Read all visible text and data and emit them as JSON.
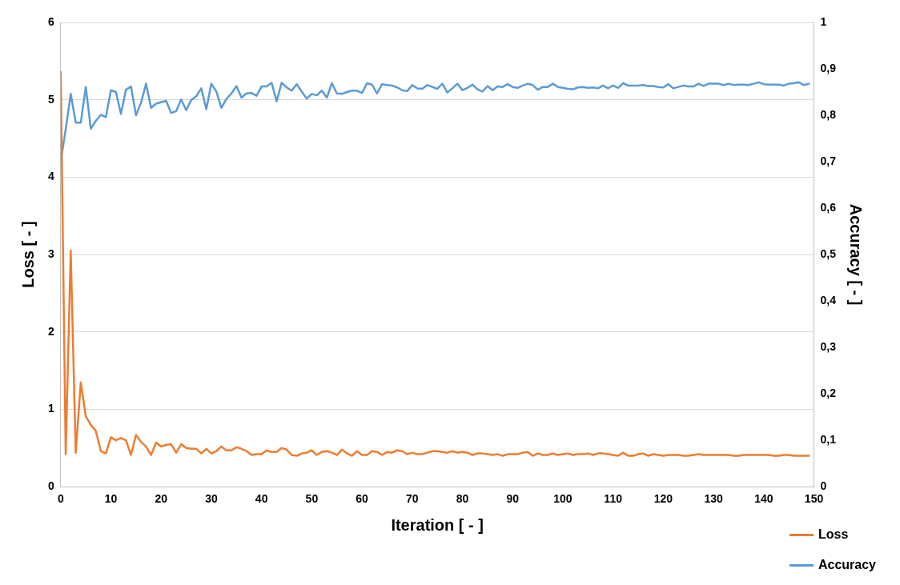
{
  "chart_data": {
    "type": "line",
    "xlabel": "Iteration [ - ]",
    "ylabel": "Loss [ - ]",
    "y2label": "Accuracy [ - ]",
    "x": [
      0,
      1,
      2,
      3,
      4,
      5,
      6,
      7,
      8,
      9,
      10,
      11,
      12,
      13,
      14,
      15,
      16,
      17,
      18,
      19,
      20,
      21,
      22,
      23,
      24,
      25,
      26,
      27,
      28,
      29,
      30,
      31,
      32,
      33,
      34,
      35,
      36,
      37,
      38,
      39,
      40,
      41,
      42,
      43,
      44,
      45,
      46,
      47,
      48,
      49,
      50,
      51,
      52,
      53,
      54,
      55,
      56,
      57,
      58,
      59,
      60,
      61,
      62,
      63,
      64,
      65,
      66,
      67,
      68,
      69,
      70,
      71,
      72,
      73,
      74,
      75,
      76,
      77,
      78,
      79,
      80,
      81,
      82,
      83,
      84,
      85,
      86,
      87,
      88,
      89,
      90,
      91,
      92,
      93,
      94,
      95,
      96,
      97,
      98,
      99,
      100,
      101,
      102,
      103,
      104,
      105,
      106,
      107,
      108,
      109,
      110,
      111,
      112,
      113,
      114,
      115,
      116,
      117,
      118,
      119,
      120,
      121,
      122,
      123,
      124,
      125,
      126,
      127,
      128,
      129,
      130,
      131,
      132,
      133,
      134,
      135,
      136,
      137,
      138,
      139,
      140,
      141,
      142,
      143,
      144,
      145,
      146,
      147,
      148,
      149
    ],
    "xlim": [
      0,
      150
    ],
    "xticks": [
      0,
      10,
      20,
      30,
      40,
      50,
      60,
      70,
      80,
      90,
      100,
      110,
      120,
      130,
      140,
      150
    ],
    "ylim": [
      0,
      6
    ],
    "yticks": [
      0,
      1,
      2,
      3,
      4,
      5,
      6
    ],
    "y2lim": [
      0,
      1
    ],
    "y2ticks": [
      {
        "value": 0,
        "label": "0"
      },
      {
        "value": 0.1,
        "label": "0,1"
      },
      {
        "value": 0.2,
        "label": "0,2"
      },
      {
        "value": 0.3,
        "label": "0,3"
      },
      {
        "value": 0.4,
        "label": "0,4"
      },
      {
        "value": 0.5,
        "label": "0,5"
      },
      {
        "value": 0.6,
        "label": "0,6"
      },
      {
        "value": 0.7,
        "label": "0,7"
      },
      {
        "value": 0.8,
        "label": "0,8"
      },
      {
        "value": 0.9,
        "label": "0,9"
      },
      {
        "value": 1,
        "label": "1"
      }
    ],
    "grid": "y",
    "legend": "bottom right",
    "marker": "none",
    "line_style": "solid",
    "series": [
      {
        "name": "Loss",
        "color": "#ed7d31",
        "values": [
          5.36,
          0.42,
          3.05,
          0.44,
          1.35,
          0.91,
          0.8,
          0.72,
          0.46,
          0.43,
          0.64,
          0.6,
          0.63,
          0.6,
          0.41,
          0.67,
          0.58,
          0.52,
          0.41,
          0.57,
          0.52,
          0.54,
          0.55,
          0.44,
          0.55,
          0.5,
          0.49,
          0.49,
          0.43,
          0.49,
          0.43,
          0.46,
          0.52,
          0.47,
          0.47,
          0.51,
          0.49,
          0.46,
          0.41,
          0.42,
          0.42,
          0.47,
          0.45,
          0.45,
          0.5,
          0.48,
          0.41,
          0.4,
          0.43,
          0.44,
          0.47,
          0.41,
          0.45,
          0.46,
          0.44,
          0.41,
          0.48,
          0.43,
          0.4,
          0.46,
          0.41,
          0.41,
          0.46,
          0.45,
          0.41,
          0.45,
          0.44,
          0.47,
          0.46,
          0.42,
          0.44,
          0.42,
          0.42,
          0.44,
          0.46,
          0.46,
          0.45,
          0.44,
          0.46,
          0.44,
          0.45,
          0.44,
          0.41,
          0.43,
          0.43,
          0.42,
          0.41,
          0.42,
          0.4,
          0.42,
          0.42,
          0.42,
          0.44,
          0.45,
          0.4,
          0.43,
          0.41,
          0.41,
          0.43,
          0.41,
          0.42,
          0.43,
          0.41,
          0.42,
          0.42,
          0.43,
          0.41,
          0.43,
          0.43,
          0.42,
          0.41,
          0.4,
          0.44,
          0.4,
          0.4,
          0.42,
          0.43,
          0.4,
          0.42,
          0.41,
          0.4,
          0.41,
          0.41,
          0.41,
          0.4,
          0.4,
          0.41,
          0.42,
          0.41,
          0.41,
          0.41,
          0.41,
          0.41,
          0.41,
          0.4,
          0.4,
          0.41,
          0.41,
          0.41,
          0.41,
          0.41,
          0.41,
          0.4,
          0.4,
          0.41,
          0.41,
          0.4,
          0.4,
          0.4,
          0.4
        ]
      },
      {
        "name": "Accuracy",
        "color": "#5b9bd5",
        "axis": "y2",
        "values": [
          0.7,
          0.77,
          0.846,
          0.784,
          0.784,
          0.861,
          0.771,
          0.788,
          0.801,
          0.796,
          0.854,
          0.85,
          0.803,
          0.855,
          0.862,
          0.8,
          0.827,
          0.868,
          0.816,
          0.825,
          0.828,
          0.831,
          0.805,
          0.809,
          0.834,
          0.811,
          0.833,
          0.841,
          0.858,
          0.813,
          0.868,
          0.851,
          0.816,
          0.835,
          0.847,
          0.863,
          0.838,
          0.847,
          0.848,
          0.842,
          0.862,
          0.862,
          0.87,
          0.83,
          0.87,
          0.86,
          0.853,
          0.867,
          0.851,
          0.836,
          0.846,
          0.843,
          0.853,
          0.838,
          0.869,
          0.847,
          0.846,
          0.85,
          0.853,
          0.853,
          0.848,
          0.869,
          0.866,
          0.847,
          0.867,
          0.865,
          0.864,
          0.86,
          0.854,
          0.852,
          0.865,
          0.858,
          0.857,
          0.865,
          0.861,
          0.857,
          0.868,
          0.849,
          0.858,
          0.868,
          0.854,
          0.859,
          0.866,
          0.856,
          0.851,
          0.863,
          0.854,
          0.862,
          0.861,
          0.867,
          0.861,
          0.859,
          0.864,
          0.868,
          0.865,
          0.855,
          0.861,
          0.861,
          0.868,
          0.861,
          0.859,
          0.857,
          0.856,
          0.86,
          0.861,
          0.859,
          0.86,
          0.858,
          0.864,
          0.858,
          0.864,
          0.859,
          0.869,
          0.864,
          0.864,
          0.864,
          0.865,
          0.863,
          0.863,
          0.861,
          0.86,
          0.867,
          0.858,
          0.861,
          0.864,
          0.862,
          0.862,
          0.868,
          0.863,
          0.868,
          0.868,
          0.868,
          0.865,
          0.868,
          0.865,
          0.866,
          0.866,
          0.865,
          0.868,
          0.871,
          0.867,
          0.866,
          0.866,
          0.866,
          0.864,
          0.868,
          0.869,
          0.871,
          0.865,
          0.868
        ]
      }
    ]
  }
}
